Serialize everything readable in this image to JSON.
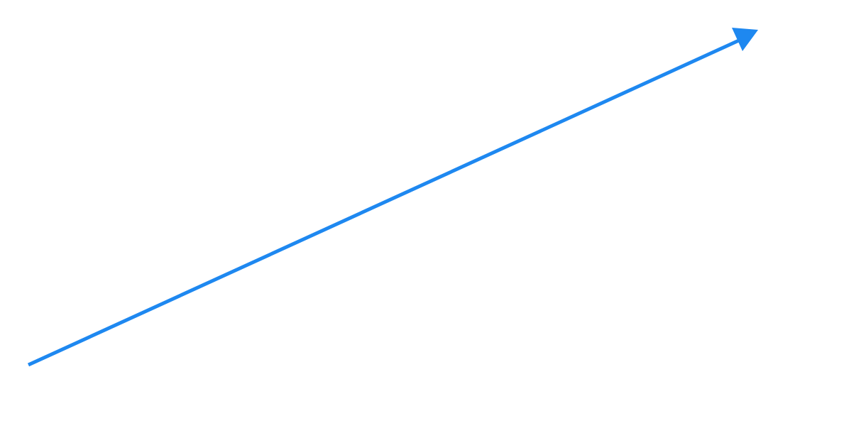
{
  "diagram": {
    "elements": [
      {
        "kind": "arrow",
        "icon": "arrow-up-right-icon",
        "direction": "up-right",
        "color": "#1e88f0"
      }
    ]
  }
}
